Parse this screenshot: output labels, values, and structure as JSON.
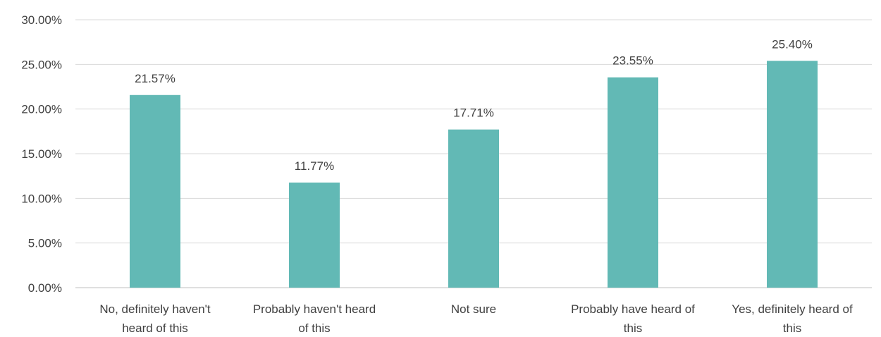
{
  "chart_data": {
    "type": "bar",
    "categories": [
      [
        "No, definitely haven't",
        "heard of this"
      ],
      [
        "Probably haven't heard",
        "of this"
      ],
      [
        "Not sure"
      ],
      [
        "Probably have heard of",
        "this"
      ],
      [
        "Yes, definitely heard of",
        "this"
      ]
    ],
    "values": [
      21.57,
      11.77,
      17.71,
      23.55,
      25.4
    ],
    "data_labels": [
      "21.57%",
      "11.77%",
      "17.71%",
      "23.55%",
      "25.40%"
    ],
    "y_ticks": [
      0,
      5,
      10,
      15,
      20,
      25,
      30
    ],
    "y_tick_labels": [
      "0.00%",
      "5.00%",
      "10.00%",
      "15.00%",
      "20.00%",
      "25.00%",
      "30.00%"
    ],
    "ylim": [
      0,
      30
    ],
    "grid": true,
    "legend": "none",
    "bar_color": "#62b9b5"
  }
}
